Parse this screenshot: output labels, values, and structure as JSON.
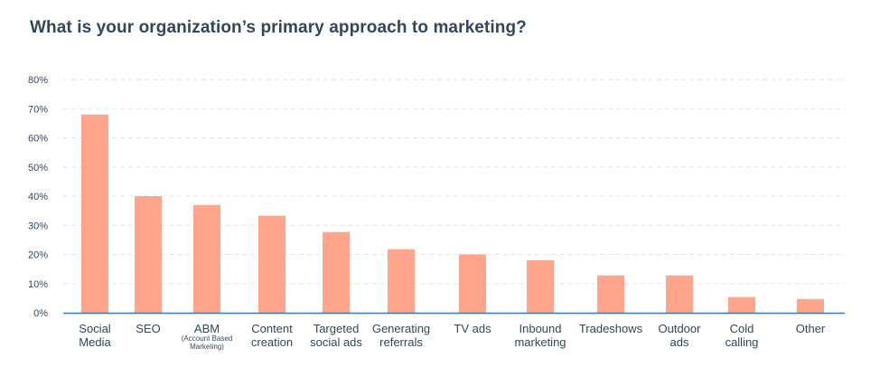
{
  "chart_data": {
    "type": "bar",
    "title": "What is your organization’s primary approach to marketing?",
    "xlabel": "",
    "ylabel": "",
    "ylim": [
      0,
      80
    ],
    "yticks": [
      0,
      10,
      20,
      30,
      40,
      50,
      60,
      70,
      80
    ],
    "ytick_labels": [
      "0%",
      "10%",
      "20%",
      "30%",
      "40%",
      "50%",
      "60%",
      "70%",
      "80%"
    ],
    "grid": true,
    "legend": "none",
    "bar_color": "#ffa58c",
    "axis_color": "#3f75b0",
    "categories": [
      {
        "lines": [
          "Social",
          "Media"
        ],
        "note": []
      },
      {
        "lines": [
          "SEO"
        ],
        "note": []
      },
      {
        "lines": [
          "ABM"
        ],
        "note": [
          "(Account Based",
          "Marketing)"
        ]
      },
      {
        "lines": [
          "Content",
          "creation"
        ],
        "note": []
      },
      {
        "lines": [
          "Targeted",
          "social ads"
        ],
        "note": []
      },
      {
        "lines": [
          "Generating",
          "referrals"
        ],
        "note": []
      },
      {
        "lines": [
          "TV ads"
        ],
        "note": []
      },
      {
        "lines": [
          "Inbound",
          "marketing"
        ],
        "note": []
      },
      {
        "lines": [
          "Tradeshows"
        ],
        "note": []
      },
      {
        "lines": [
          "Outdoor",
          "ads"
        ],
        "note": []
      },
      {
        "lines": [
          "Cold",
          "calling"
        ],
        "note": []
      },
      {
        "lines": [
          "Other"
        ],
        "note": []
      }
    ],
    "values": [
      68,
      40,
      37,
      33.3,
      27.7,
      21.8,
      20,
      18,
      12.8,
      12.8,
      5.4,
      4.7
    ]
  }
}
